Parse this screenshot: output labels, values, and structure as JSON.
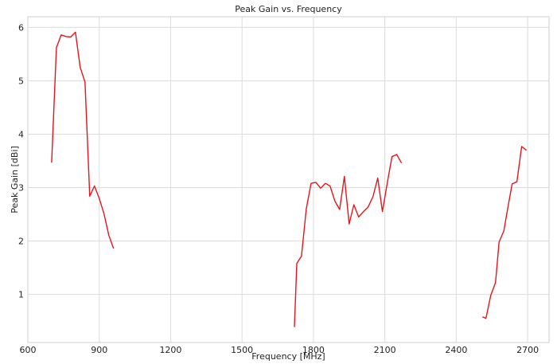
{
  "chart_data": {
    "type": "line",
    "title": "Peak Gain vs. Frequency",
    "xlabel": "Frequency [MHz]",
    "ylabel": "Peak Gain [dBi]",
    "xlim": [
      600,
      2790
    ],
    "ylim": [
      0.1,
      6.2
    ],
    "xticks": [
      600,
      900,
      1200,
      1500,
      1800,
      2100,
      2400,
      2700
    ],
    "yticks": [
      1,
      2,
      3,
      4,
      5,
      6
    ],
    "grid": true,
    "line_color": "#e8141c",
    "segments": [
      {
        "x": [
          700,
          720,
          740,
          760,
          780,
          800,
          820,
          840,
          860,
          880,
          900,
          920,
          940,
          960
        ],
        "y": [
          3.47,
          5.62,
          5.86,
          5.83,
          5.82,
          5.91,
          5.25,
          4.98,
          2.84,
          3.03,
          2.8,
          2.51,
          2.11,
          1.86
        ]
      },
      {
        "x": [
          1720,
          1730,
          1750,
          1770,
          1790,
          1810,
          1830,
          1850,
          1870,
          1890,
          1910,
          1930,
          1950,
          1970,
          1990,
          2010,
          2030,
          2050,
          2070,
          2090,
          2110,
          2130,
          2150,
          2170
        ],
        "y": [
          0.39,
          1.58,
          1.72,
          2.6,
          3.08,
          3.1,
          2.99,
          3.08,
          3.03,
          2.75,
          2.59,
          3.21,
          2.32,
          2.68,
          2.45,
          2.55,
          2.64,
          2.83,
          3.18,
          2.55,
          3.08,
          3.58,
          3.62,
          3.46
        ]
      },
      {
        "x": [
          2510,
          2525,
          2545,
          2565,
          2580,
          2600,
          2615,
          2635,
          2655,
          2675,
          2695
        ],
        "y": [
          0.58,
          0.55,
          0.98,
          1.22,
          1.98,
          2.19,
          2.58,
          3.07,
          3.11,
          3.77,
          3.7
        ]
      }
    ]
  }
}
